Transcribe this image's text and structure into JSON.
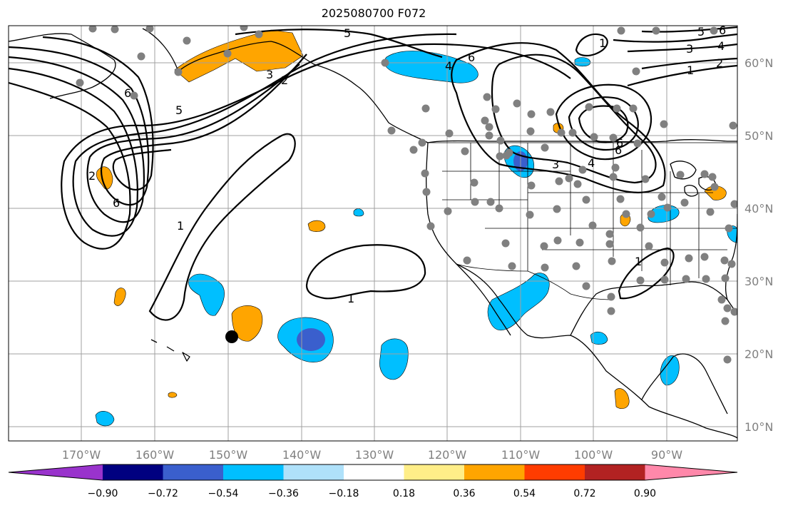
{
  "title": "2025080700 F072",
  "lon_labels": [
    "170°W",
    "160°W",
    "150°W",
    "140°W",
    "130°W",
    "120°W",
    "110°W",
    "100°W",
    "90°W"
  ],
  "lat_labels": [
    "60°N",
    "50°N",
    "40°N",
    "30°N",
    "20°N",
    "10°N"
  ],
  "colorbar": {
    "colors": [
      "#9933cc",
      "#000080",
      "#3a5fcd",
      "#00bfff",
      "#afe1fa",
      "#ffffff",
      "#ffee88",
      "#ffa500",
      "#ff3c00",
      "#b22222",
      "#ff88aa"
    ],
    "tick_labels": [
      "−0.90",
      "−0.72",
      "−0.54",
      "−0.36",
      "−0.18",
      "0.18",
      "0.36",
      "0.54",
      "0.72",
      "0.90"
    ]
  },
  "contour_labels": [
    "5",
    "6",
    "3",
    "2",
    "1",
    "6",
    "5",
    "2",
    "6",
    "1",
    "1",
    "4",
    "6",
    "1",
    "2",
    "3",
    "4",
    "5",
    "6",
    "1",
    "3",
    "4",
    "6"
  ],
  "colors": {
    "orange": "#ffa500",
    "sky": "#00bfff",
    "royal": "#3a5fcd",
    "station": "#808080",
    "marker": "#000000"
  }
}
